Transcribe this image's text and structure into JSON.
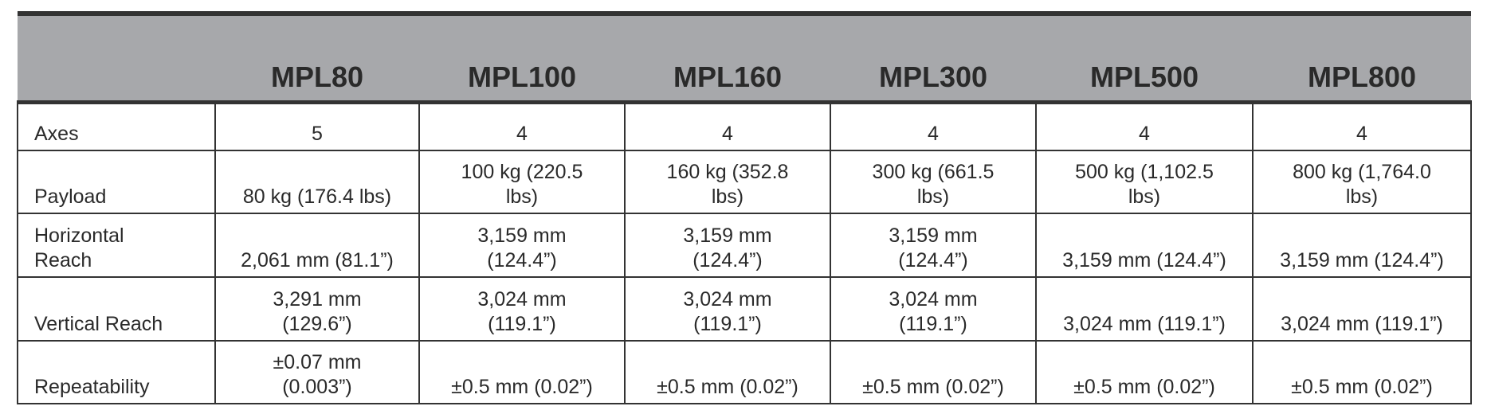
{
  "table": {
    "header": [
      "",
      "MPL80",
      "MPL100",
      "MPL160",
      "MPL300",
      "MPL500",
      "MPL800"
    ],
    "rows": [
      [
        [
          "Axes"
        ],
        [
          "5"
        ],
        [
          "4"
        ],
        [
          "4"
        ],
        [
          "4"
        ],
        [
          "4"
        ],
        [
          "4"
        ]
      ],
      [
        [
          "Payload"
        ],
        [
          "80 kg (176.4 lbs)"
        ],
        [
          "100 kg (220.5",
          "lbs)"
        ],
        [
          "160 kg (352.8",
          "lbs)"
        ],
        [
          "300 kg (661.5",
          "lbs)"
        ],
        [
          "500 kg (1,102.5",
          "lbs)"
        ],
        [
          "800 kg (1,764.0",
          "lbs)"
        ]
      ],
      [
        [
          "Horizontal",
          "Reach"
        ],
        [
          "2,061 mm (81.1”)"
        ],
        [
          "3,159 mm",
          "(124.4”)"
        ],
        [
          "3,159 mm",
          "(124.4”)"
        ],
        [
          "3,159 mm",
          "(124.4”)"
        ],
        [
          "3,159 mm (124.4”)"
        ],
        [
          "3,159 mm (124.4”)"
        ]
      ],
      [
        [
          "Vertical Reach"
        ],
        [
          "3,291 mm",
          "(129.6”)"
        ],
        [
          "3,024 mm",
          "(119.1”)"
        ],
        [
          "3,024 mm",
          "(119.1”)"
        ],
        [
          "3,024 mm",
          "(119.1”)"
        ],
        [
          "3,024 mm (119.1”)"
        ],
        [
          "3,024 mm (119.1”)"
        ]
      ],
      [
        [
          "Repeatability"
        ],
        [
          "±0.07 mm",
          "(0.003”)"
        ],
        [
          "±0.5 mm (0.02”)"
        ],
        [
          "±0.5 mm (0.02”)"
        ],
        [
          "±0.5 mm (0.02”)"
        ],
        [
          "±0.5 mm (0.02”)"
        ],
        [
          "±0.5 mm (0.02”)"
        ]
      ]
    ]
  }
}
